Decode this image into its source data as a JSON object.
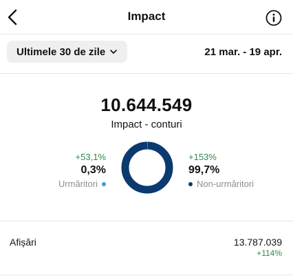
{
  "header": {
    "title": "Impact",
    "back_icon": "chevron-left-icon",
    "info_icon": "info-icon"
  },
  "filter": {
    "range_label": "Ultimele 30 de zile",
    "dropdown_icon": "chevron-down-icon",
    "date_range": "21 mar. - 19 apr."
  },
  "summary": {
    "total": "10.644.549",
    "label": "Impact - conturi"
  },
  "breakdown": {
    "followers": {
      "change": "+53,1%",
      "percent": "0,3%",
      "label": "Urmăritori",
      "color": "#2aa3e6"
    },
    "non_followers": {
      "change": "+153%",
      "percent": "99,7%",
      "label": "Non-urmăritori",
      "color": "#0b3a6e"
    },
    "donut_fraction_followers": 0.003
  },
  "metrics": {
    "impressions": {
      "label": "Afișări",
      "value": "13.787.039",
      "change": "+114%"
    }
  },
  "colors": {
    "positive": "#2e8b4a",
    "muted": "#8e8e8e"
  }
}
